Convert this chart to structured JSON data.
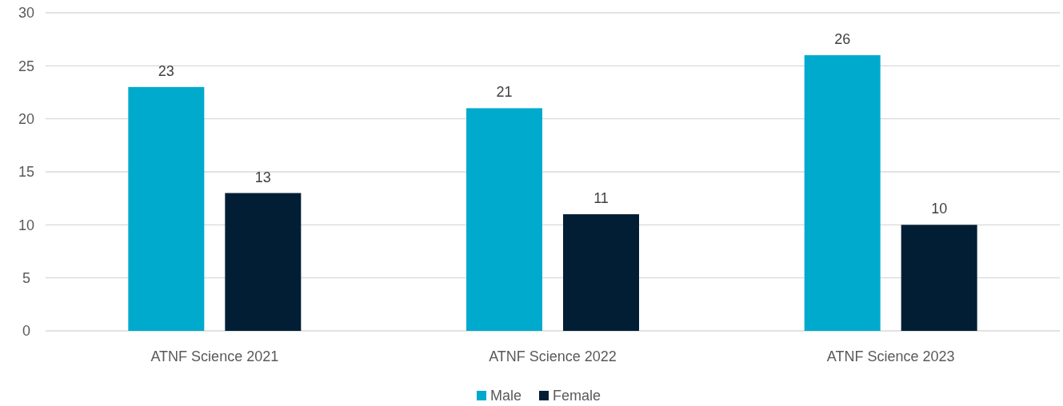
{
  "chart_data": {
    "type": "bar",
    "categories": [
      "ATNF Science 2021",
      "ATNF Science 2022",
      "ATNF Science 2023"
    ],
    "series": [
      {
        "name": "Male",
        "color": "#00aacd",
        "values": [
          23,
          21,
          26
        ]
      },
      {
        "name": "Female",
        "color": "#011e35",
        "values": [
          13,
          11,
          10
        ]
      }
    ],
    "ylim": [
      0,
      30
    ],
    "yticks": [
      0,
      5,
      10,
      15,
      20,
      25,
      30
    ],
    "grid": "y",
    "legend": "bottom",
    "data_labels": true
  }
}
